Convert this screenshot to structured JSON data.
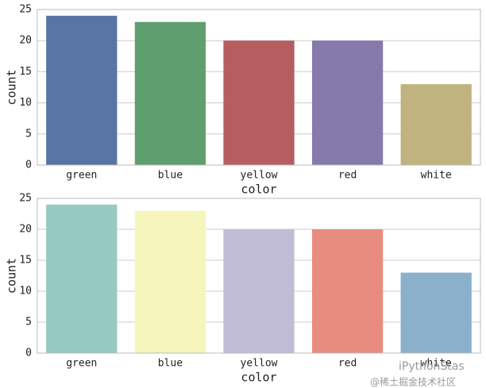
{
  "chart_data": [
    {
      "type": "bar",
      "categories": [
        "green",
        "blue",
        "yellow",
        "red",
        "white"
      ],
      "values": [
        24,
        23,
        20,
        20,
        13
      ],
      "colors": [
        "#5875a4",
        "#5f9e6e",
        "#b55d60",
        "#857aab",
        "#c1b37f"
      ],
      "xlabel": "color",
      "ylabel": "count",
      "ylim": [
        0,
        25
      ],
      "yticks": [
        0,
        5,
        10,
        15,
        20,
        25
      ],
      "grid": true
    },
    {
      "type": "bar",
      "categories": [
        "green",
        "blue",
        "yellow",
        "red",
        "white"
      ],
      "values": [
        24,
        23,
        20,
        20,
        13
      ],
      "colors": [
        "#96cac1",
        "#f6f6bc",
        "#c0bcd6",
        "#e98c80",
        "#8ab0cc"
      ],
      "xlabel": "color",
      "ylabel": "count",
      "ylim": [
        0,
        25
      ],
      "yticks": [
        0,
        5,
        10,
        15,
        20,
        25
      ],
      "grid": true
    }
  ],
  "watermark": {
    "name": "iPythonStas",
    "source": "@稀土掘金技术社区"
  }
}
